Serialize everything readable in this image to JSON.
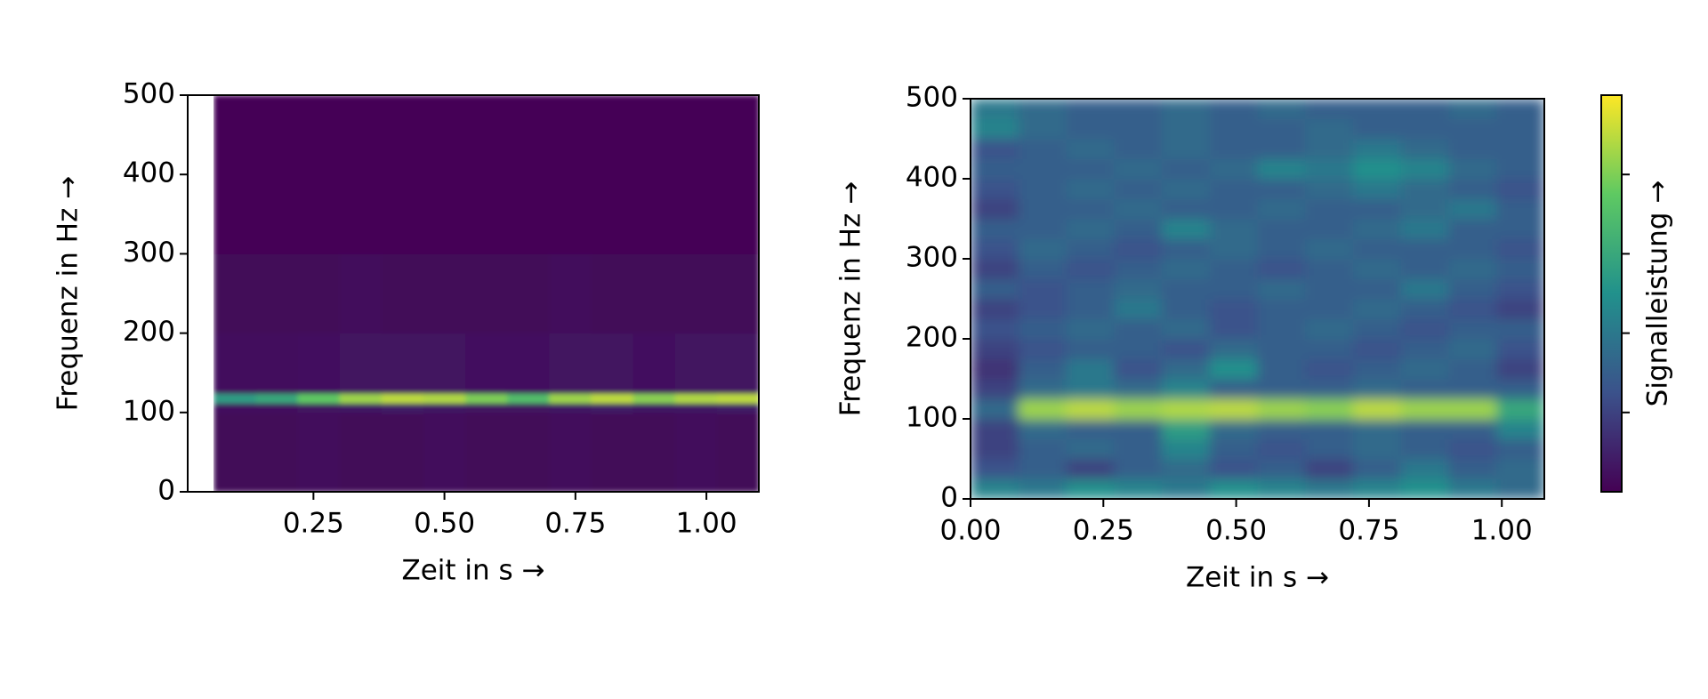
{
  "chart_data": [
    {
      "type": "heatmap",
      "xlabel": "Zeit in s →",
      "ylabel": "Frequenz in Hz →",
      "xlim": [
        0.01,
        1.1
      ],
      "ylim": [
        0,
        500
      ],
      "xticks": [
        {
          "value": 0.25,
          "label": "0.25"
        },
        {
          "value": 0.5,
          "label": "0.50"
        },
        {
          "value": 0.75,
          "label": "0.75"
        },
        {
          "value": 1.0,
          "label": "1.00"
        }
      ],
      "yticks": [
        0,
        100,
        200,
        300,
        400,
        500
      ],
      "xbins": [
        0.06,
        0.14,
        0.22,
        0.3,
        0.38,
        0.46,
        0.54,
        0.62,
        0.7,
        0.78,
        0.86,
        0.94,
        1.02,
        1.1
      ],
      "ybins": [
        0,
        100,
        112,
        124,
        200,
        300,
        400,
        500
      ],
      "clim": [
        0,
        1
      ],
      "z": [
        [
          0.02,
          0.02,
          0.03,
          0.02,
          0.02,
          0.03,
          0.02,
          0.02,
          0.03,
          0.02,
          0.02,
          0.03,
          0.02
        ],
        [
          0.05,
          0.05,
          0.06,
          0.07,
          0.08,
          0.07,
          0.06,
          0.06,
          0.07,
          0.08,
          0.07,
          0.07,
          0.08
        ],
        [
          0.55,
          0.6,
          0.75,
          0.85,
          0.9,
          0.88,
          0.8,
          0.7,
          0.85,
          0.9,
          0.82,
          0.88,
          0.9
        ],
        [
          0.04,
          0.04,
          0.05,
          0.06,
          0.06,
          0.06,
          0.05,
          0.05,
          0.06,
          0.06,
          0.05,
          0.06,
          0.06
        ],
        [
          0.02,
          0.02,
          0.02,
          0.03,
          0.02,
          0.02,
          0.02,
          0.02,
          0.03,
          0.02,
          0.02,
          0.02,
          0.02
        ],
        [
          0.01,
          0.01,
          0.01,
          0.01,
          0.01,
          0.01,
          0.01,
          0.01,
          0.01,
          0.01,
          0.01,
          0.01,
          0.01
        ],
        [
          0.01,
          0.01,
          0.01,
          0.01,
          0.01,
          0.01,
          0.01,
          0.01,
          0.01,
          0.01,
          0.01,
          0.01,
          0.01
        ]
      ]
    },
    {
      "type": "heatmap",
      "xlabel": "Zeit in s →",
      "ylabel": "Frequenz in Hz →",
      "colorbar_label": "Signalleistung →",
      "xlim": [
        0,
        1.08
      ],
      "ylim": [
        0,
        500
      ],
      "xticks": [
        {
          "value": 0,
          "label": "0.00"
        },
        {
          "value": 0.25,
          "label": "0.25"
        },
        {
          "value": 0.5,
          "label": "0.50"
        },
        {
          "value": 0.75,
          "label": "0.75"
        },
        {
          "value": 1.0,
          "label": "1.00"
        }
      ],
      "yticks": [
        0,
        100,
        200,
        300,
        400,
        500
      ],
      "xbins": [
        0,
        0.09,
        0.18,
        0.27,
        0.36,
        0.45,
        0.54,
        0.63,
        0.72,
        0.81,
        0.9,
        0.99,
        1.08
      ],
      "ybins": [
        0,
        25,
        50,
        75,
        100,
        125,
        150,
        175,
        200,
        225,
        250,
        275,
        300,
        325,
        350,
        375,
        400,
        425,
        450,
        475,
        500
      ],
      "clim": [
        0,
        1
      ],
      "cticks": [
        0.2,
        0.4,
        0.6,
        0.8
      ],
      "z": [
        [
          0.45,
          0.4,
          0.5,
          0.45,
          0.4,
          0.5,
          0.45,
          0.4,
          0.45,
          0.5,
          0.4,
          0.35
        ],
        [
          0.25,
          0.3,
          0.2,
          0.3,
          0.35,
          0.25,
          0.3,
          0.2,
          0.3,
          0.4,
          0.3,
          0.35
        ],
        [
          0.2,
          0.3,
          0.35,
          0.3,
          0.45,
          0.3,
          0.25,
          0.3,
          0.35,
          0.3,
          0.25,
          0.3
        ],
        [
          0.2,
          0.35,
          0.3,
          0.3,
          0.55,
          0.35,
          0.3,
          0.3,
          0.35,
          0.3,
          0.3,
          0.45
        ],
        [
          0.35,
          0.85,
          0.9,
          0.85,
          0.88,
          0.9,
          0.85,
          0.82,
          0.9,
          0.85,
          0.85,
          0.6
        ],
        [
          0.2,
          0.35,
          0.4,
          0.35,
          0.45,
          0.3,
          0.3,
          0.3,
          0.35,
          0.3,
          0.3,
          0.3
        ],
        [
          0.15,
          0.3,
          0.4,
          0.25,
          0.35,
          0.5,
          0.3,
          0.25,
          0.3,
          0.35,
          0.3,
          0.2
        ],
        [
          0.2,
          0.25,
          0.3,
          0.3,
          0.25,
          0.35,
          0.3,
          0.3,
          0.25,
          0.3,
          0.35,
          0.25
        ],
        [
          0.25,
          0.3,
          0.35,
          0.3,
          0.35,
          0.25,
          0.3,
          0.35,
          0.3,
          0.25,
          0.3,
          0.3
        ],
        [
          0.2,
          0.25,
          0.3,
          0.4,
          0.3,
          0.25,
          0.3,
          0.3,
          0.35,
          0.3,
          0.25,
          0.2
        ],
        [
          0.3,
          0.25,
          0.3,
          0.35,
          0.3,
          0.3,
          0.35,
          0.3,
          0.3,
          0.4,
          0.3,
          0.25
        ],
        [
          0.2,
          0.3,
          0.25,
          0.3,
          0.35,
          0.3,
          0.25,
          0.3,
          0.35,
          0.3,
          0.35,
          0.3
        ],
        [
          0.25,
          0.35,
          0.3,
          0.25,
          0.3,
          0.35,
          0.3,
          0.35,
          0.3,
          0.3,
          0.3,
          0.25
        ],
        [
          0.3,
          0.3,
          0.35,
          0.3,
          0.45,
          0.35,
          0.3,
          0.3,
          0.35,
          0.4,
          0.3,
          0.3
        ],
        [
          0.2,
          0.3,
          0.3,
          0.35,
          0.3,
          0.3,
          0.35,
          0.3,
          0.3,
          0.35,
          0.4,
          0.3
        ],
        [
          0.25,
          0.3,
          0.35,
          0.3,
          0.35,
          0.3,
          0.3,
          0.35,
          0.4,
          0.35,
          0.3,
          0.25
        ],
        [
          0.3,
          0.3,
          0.3,
          0.35,
          0.3,
          0.35,
          0.45,
          0.4,
          0.5,
          0.45,
          0.35,
          0.3
        ],
        [
          0.25,
          0.3,
          0.35,
          0.3,
          0.35,
          0.3,
          0.3,
          0.35,
          0.4,
          0.35,
          0.3,
          0.3
        ],
        [
          0.45,
          0.35,
          0.3,
          0.3,
          0.35,
          0.3,
          0.3,
          0.35,
          0.3,
          0.3,
          0.3,
          0.3
        ],
        [
          0.4,
          0.35,
          0.3,
          0.3,
          0.35,
          0.3,
          0.35,
          0.3,
          0.3,
          0.3,
          0.35,
          0.3
        ]
      ]
    }
  ]
}
